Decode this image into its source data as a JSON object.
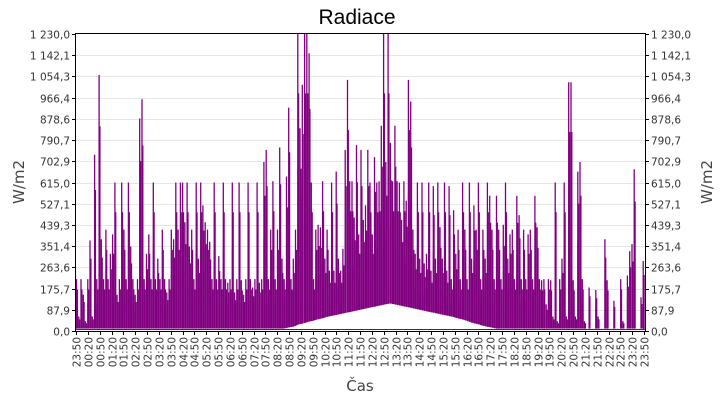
{
  "chart_data": {
    "type": "bar",
    "title": "Radiace",
    "xlabel": "Čas",
    "ylabel": "W/m2",
    "ylabel_right": "W/m2",
    "ylim": [
      0,
      1230
    ],
    "grid": true,
    "legend": null,
    "series_color": "#800080",
    "y_ticks": [
      "0,0",
      "87,9",
      "175,7",
      "263,6",
      "351,4",
      "439,3",
      "527,1",
      "615,0",
      "702,9",
      "790,7",
      "878,6",
      "966,4",
      "1 054,3",
      "1 142,1",
      "1 230,0"
    ],
    "y_tick_values": [
      0,
      87.9,
      175.7,
      263.6,
      351.4,
      439.3,
      527.1,
      615.0,
      702.9,
      790.7,
      878.6,
      966.4,
      1054.3,
      1142.1,
      1230.0
    ],
    "x_ticks": [
      "23:50",
      "00:20",
      "00:50",
      "01:20",
      "01:50",
      "02:20",
      "02:50",
      "03:20",
      "03:50",
      "04:20",
      "04:50",
      "05:20",
      "05:50",
      "06:20",
      "06:50",
      "07:20",
      "07:50",
      "08:20",
      "08:50",
      "09:20",
      "09:50",
      "10:20",
      "10:50",
      "11:20",
      "11:50",
      "12:20",
      "12:50",
      "13:20",
      "13:50",
      "14:20",
      "14:50",
      "15:20",
      "15:50",
      "16:20",
      "16:50",
      "17:20",
      "17:50",
      "18:20",
      "18:50",
      "19:20",
      "19:50",
      "20:20",
      "20:50",
      "21:20",
      "21:50",
      "22:20",
      "22:50",
      "23:20",
      "23:50"
    ],
    "series": [
      {
        "name": "Radiace",
        "note": "sampled approx every 5 minutes from 23:50 to 23:50; each entry [baseline, peak] in W/m2",
        "values": [
          [
            10,
            215
          ],
          [
            10,
            60
          ],
          [
            10,
            215
          ],
          [
            10,
            150
          ],
          [
            10,
            40
          ],
          [
            10,
            215
          ],
          [
            10,
            375
          ],
          [
            10,
            60
          ],
          [
            10,
            730
          ],
          [
            10,
            215
          ],
          [
            10,
            1060
          ],
          [
            10,
            380
          ],
          [
            10,
            215
          ],
          [
            10,
            420
          ],
          [
            10,
            215
          ],
          [
            10,
            320
          ],
          [
            10,
            400
          ],
          [
            10,
            615
          ],
          [
            10,
            150
          ],
          [
            10,
            215
          ],
          [
            10,
            615
          ],
          [
            10,
            420
          ],
          [
            10,
            215
          ],
          [
            10,
            615
          ],
          [
            10,
            350
          ],
          [
            10,
            215
          ],
          [
            10,
            150
          ],
          [
            10,
            215
          ],
          [
            10,
            880
          ],
          [
            10,
            960
          ],
          [
            10,
            215
          ],
          [
            10,
            320
          ],
          [
            10,
            400
          ],
          [
            10,
            215
          ],
          [
            10,
            615
          ],
          [
            10,
            215
          ],
          [
            10,
            300
          ],
          [
            10,
            215
          ],
          [
            10,
            420
          ],
          [
            10,
            215
          ],
          [
            10,
            160
          ],
          [
            10,
            215
          ],
          [
            10,
            420
          ],
          [
            10,
            380
          ],
          [
            10,
            615
          ],
          [
            10,
            420
          ],
          [
            10,
            615
          ],
          [
            10,
            615
          ],
          [
            10,
            450
          ],
          [
            10,
            615
          ],
          [
            10,
            350
          ],
          [
            10,
            420
          ],
          [
            10,
            215
          ],
          [
            10,
            615
          ],
          [
            10,
            300
          ],
          [
            10,
            615
          ],
          [
            10,
            520
          ],
          [
            10,
            450
          ],
          [
            10,
            420
          ],
          [
            10,
            370
          ],
          [
            10,
            215
          ],
          [
            10,
            615
          ],
          [
            10,
            215
          ],
          [
            10,
            310
          ],
          [
            10,
            215
          ],
          [
            10,
            615
          ],
          [
            10,
            215
          ],
          [
            10,
            200
          ],
          [
            10,
            215
          ],
          [
            10,
            615
          ],
          [
            10,
            160
          ],
          [
            10,
            215
          ],
          [
            10,
            615
          ],
          [
            10,
            210
          ],
          [
            10,
            150
          ],
          [
            10,
            215
          ],
          [
            10,
            615
          ],
          [
            10,
            215
          ],
          [
            10,
            180
          ],
          [
            10,
            215
          ],
          [
            10,
            615
          ],
          [
            10,
            200
          ],
          [
            10,
            215
          ],
          [
            10,
            700
          ],
          [
            10,
            750
          ],
          [
            10,
            215
          ],
          [
            10,
            420
          ],
          [
            10,
            620
          ],
          [
            10,
            215
          ],
          [
            10,
            420
          ],
          [
            10,
            760
          ],
          [
            10,
            300
          ],
          [
            10,
            215
          ],
          [
            12,
            640
          ],
          [
            14,
            925
          ],
          [
            16,
            215
          ],
          [
            18,
            300
          ],
          [
            20,
            420
          ],
          [
            25,
            1230
          ],
          [
            28,
            840
          ],
          [
            30,
            1020
          ],
          [
            32,
            1230
          ],
          [
            35,
            1230
          ],
          [
            38,
            1150
          ],
          [
            40,
            615
          ],
          [
            42,
            215
          ],
          [
            45,
            420
          ],
          [
            48,
            440
          ],
          [
            50,
            430
          ],
          [
            52,
            620
          ],
          [
            55,
            300
          ],
          [
            58,
            420
          ],
          [
            60,
            250
          ],
          [
            62,
            615
          ],
          [
            64,
            250
          ],
          [
            66,
            660
          ],
          [
            68,
            300
          ],
          [
            70,
            250
          ],
          [
            72,
            340
          ],
          [
            74,
            750
          ],
          [
            76,
            1040
          ],
          [
            78,
            620
          ],
          [
            80,
            620
          ],
          [
            82,
            470
          ],
          [
            84,
            770
          ],
          [
            86,
            400
          ],
          [
            88,
            750
          ],
          [
            90,
            460
          ],
          [
            92,
            520
          ],
          [
            94,
            750
          ],
          [
            96,
            615
          ],
          [
            98,
            400
          ],
          [
            100,
            720
          ],
          [
            102,
            615
          ],
          [
            104,
            620
          ],
          [
            106,
            850
          ],
          [
            108,
            1230
          ],
          [
            110,
            700
          ],
          [
            112,
            1230
          ],
          [
            114,
            780
          ],
          [
            112,
            620
          ],
          [
            110,
            850
          ],
          [
            108,
            620
          ],
          [
            106,
            615
          ],
          [
            104,
            460
          ],
          [
            102,
            620
          ],
          [
            100,
            540
          ],
          [
            98,
            1040
          ],
          [
            96,
            950
          ],
          [
            94,
            420
          ],
          [
            92,
            320
          ],
          [
            90,
            615
          ],
          [
            88,
            300
          ],
          [
            86,
            615
          ],
          [
            84,
            280
          ],
          [
            82,
            320
          ],
          [
            80,
            615
          ],
          [
            78,
            250
          ],
          [
            76,
            600
          ],
          [
            74,
            300
          ],
          [
            72,
            615
          ],
          [
            70,
            430
          ],
          [
            68,
            300
          ],
          [
            66,
            615
          ],
          [
            64,
            250
          ],
          [
            62,
            600
          ],
          [
            60,
            215
          ],
          [
            58,
            500
          ],
          [
            55,
            320
          ],
          [
            52,
            420
          ],
          [
            50,
            215
          ],
          [
            48,
            615
          ],
          [
            45,
            420
          ],
          [
            42,
            215
          ],
          [
            38,
            615
          ],
          [
            35,
            300
          ],
          [
            32,
            520
          ],
          [
            30,
            420
          ],
          [
            28,
            615
          ],
          [
            25,
            215
          ],
          [
            22,
            420
          ],
          [
            20,
            300
          ],
          [
            18,
            615
          ],
          [
            16,
            560
          ],
          [
            14,
            420
          ],
          [
            12,
            215
          ],
          [
            10,
            560
          ],
          [
            10,
            420
          ],
          [
            10,
            215
          ],
          [
            10,
            440
          ],
          [
            10,
            615
          ],
          [
            10,
            300
          ],
          [
            10,
            400
          ],
          [
            10,
            420
          ],
          [
            10,
            215
          ],
          [
            10,
            560
          ],
          [
            10,
            480
          ],
          [
            10,
            215
          ],
          [
            10,
            420
          ],
          [
            10,
            215
          ],
          [
            10,
            400
          ],
          [
            10,
            420
          ],
          [
            10,
            215
          ],
          [
            10,
            560
          ],
          [
            10,
            430
          ],
          [
            10,
            215
          ],
          [
            10,
            210
          ],
          [
            10,
            215
          ],
          [
            10,
            110
          ],
          [
            10,
            215
          ],
          [
            10,
            210
          ],
          [
            10,
            60
          ],
          [
            10,
            615
          ],
          [
            10,
            40
          ],
          [
            10,
            215
          ],
          [
            10,
            300
          ],
          [
            10,
            615
          ],
          [
            10,
            60
          ],
          [
            10,
            1030
          ],
          [
            10,
            1030
          ],
          [
            10,
            210
          ],
          [
            10,
            60
          ],
          [
            10,
            660
          ],
          [
            10,
            700
          ],
          [
            10,
            215
          ],
          [
            10,
            40
          ],
          [
            10,
            10
          ],
          [
            10,
            180
          ],
          [
            10,
            10
          ],
          [
            10,
            10
          ],
          [
            10,
            170
          ],
          [
            10,
            60
          ],
          [
            10,
            10
          ],
          [
            10,
            10
          ],
          [
            10,
            380
          ],
          [
            10,
            210
          ],
          [
            10,
            10
          ],
          [
            10,
            10
          ],
          [
            10,
            125
          ],
          [
            10,
            10
          ],
          [
            10,
            10
          ],
          [
            10,
            215
          ],
          [
            10,
            40
          ],
          [
            10,
            10
          ],
          [
            10,
            230
          ],
          [
            10,
            330
          ],
          [
            10,
            360
          ],
          [
            10,
            670
          ],
          [
            10,
            10
          ],
          [
            10,
            10
          ],
          [
            10,
            140
          ],
          [
            10,
            290
          ]
        ]
      }
    ]
  }
}
